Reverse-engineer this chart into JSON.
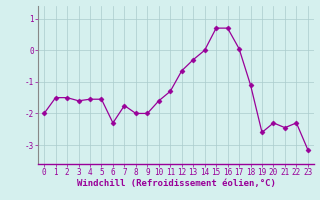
{
  "x": [
    0,
    1,
    2,
    3,
    4,
    5,
    6,
    7,
    8,
    9,
    10,
    11,
    12,
    13,
    14,
    15,
    16,
    17,
    18,
    19,
    20,
    21,
    22,
    23
  ],
  "y": [
    -2.0,
    -1.5,
    -1.5,
    -1.6,
    -1.55,
    -1.55,
    -2.3,
    -1.75,
    -2.0,
    -2.0,
    -1.6,
    -1.3,
    -0.65,
    -0.3,
    0.0,
    0.7,
    0.7,
    0.05,
    -1.1,
    -2.6,
    -2.3,
    -2.45,
    -2.3,
    -3.15
  ],
  "line_color": "#990099",
  "marker": "D",
  "marker_size": 2.5,
  "bg_color": "#d5f0ee",
  "grid_color": "#aacccc",
  "xlabel": "Windchill (Refroidissement éolien,°C)",
  "xlabel_fontsize": 6.5,
  "xlabel_color": "#990099",
  "ylabel_ticks": [
    1,
    0,
    -1,
    -2,
    -3
  ],
  "xlim": [
    -0.5,
    23.5
  ],
  "ylim": [
    -3.6,
    1.4
  ],
  "xtick_labels": [
    "0",
    "1",
    "2",
    "3",
    "4",
    "5",
    "6",
    "7",
    "8",
    "9",
    "10",
    "11",
    "12",
    "13",
    "14",
    "15",
    "16",
    "17",
    "18",
    "19",
    "20",
    "21",
    "22",
    "23"
  ],
  "tick_fontsize": 5.5,
  "tick_color": "#990099"
}
